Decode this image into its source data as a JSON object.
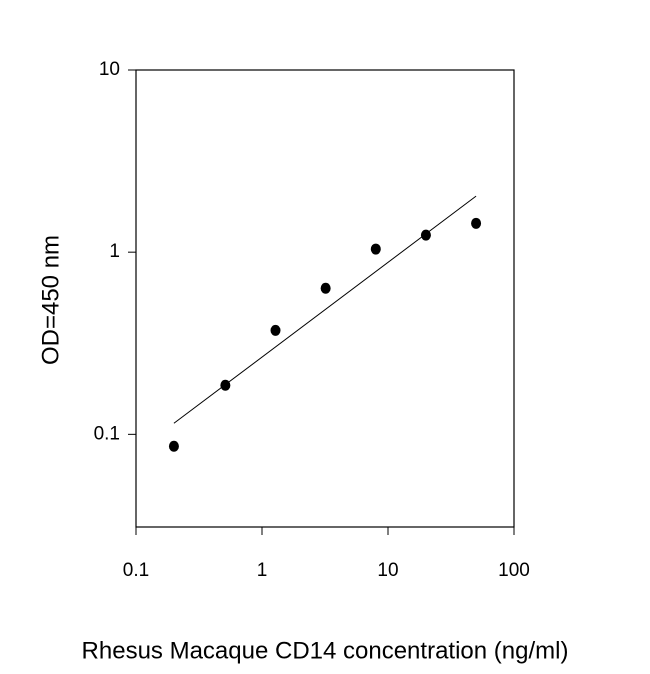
{
  "chart_data": {
    "type": "scatter",
    "x_label": "Rhesus Macaque CD14 concentration (ng/ml)",
    "y_label": "OD=450 nm",
    "x": [
      0.2,
      0.512,
      1.28,
      3.2,
      8,
      20,
      50
    ],
    "values": [
      0.086,
      0.186,
      0.372,
      0.634,
      1.04,
      1.24,
      1.44
    ],
    "color": "#000000",
    "fit_line": {
      "x": [
        0.2,
        50
      ],
      "values": [
        0.115,
        2.03
      ]
    },
    "x_log": true,
    "y_log": true,
    "xlim": [
      0.1,
      100
    ],
    "ylim": [
      0.031,
      10
    ],
    "xticks": [
      0.1,
      1,
      10,
      100
    ],
    "yticks": [
      0.1,
      1,
      10
    ]
  }
}
